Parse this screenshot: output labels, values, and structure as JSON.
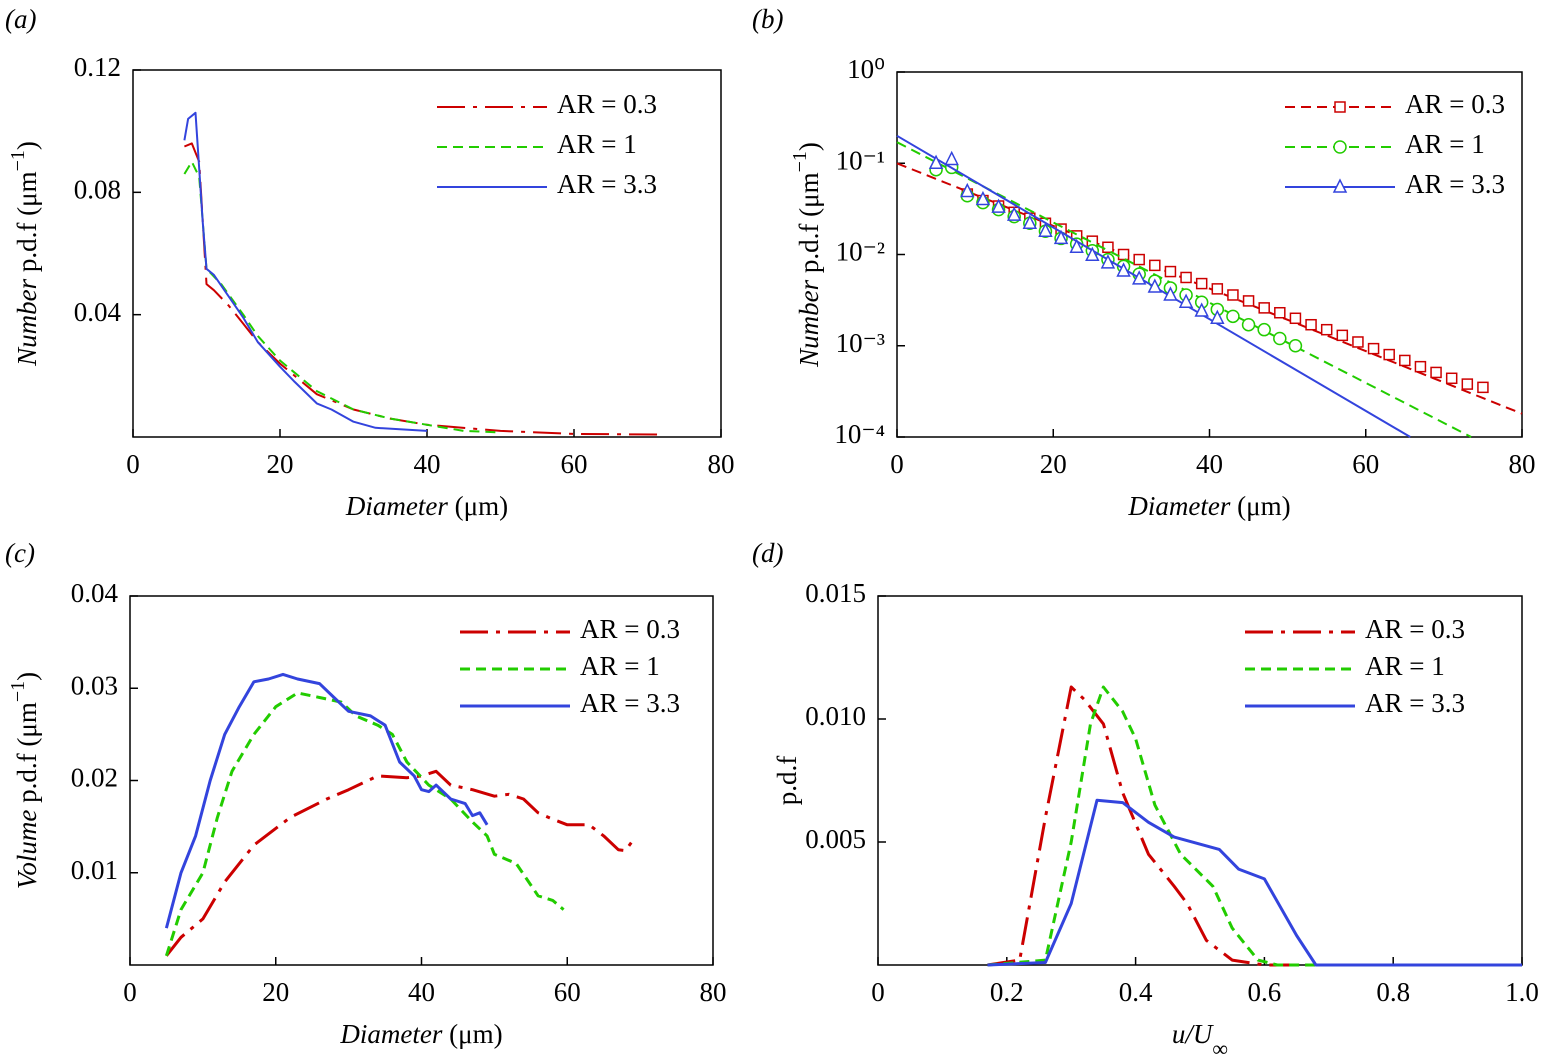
{
  "chart_data": [
    {
      "type": "line",
      "label": "(a)",
      "xlabel": [
        "Diameter",
        " (μm)"
      ],
      "ylabel": [
        "Number",
        " p.d.f (μm",
        "−1",
        ")"
      ],
      "xlim": [
        0,
        80
      ],
      "xticks": [
        0,
        20,
        40,
        60,
        80
      ],
      "ylim": [
        0,
        0.12
      ],
      "yticks": [
        0.04,
        0.08,
        0.12
      ],
      "legend": "upper right",
      "series": [
        {
          "name": "AR = 0.3",
          "color": "#cc0000",
          "dash": "dashdot",
          "x": [
            7,
            8,
            9,
            10,
            11,
            13,
            15,
            17,
            20,
            25,
            30,
            35,
            40,
            50,
            60,
            72
          ],
          "values": [
            0.095,
            0.096,
            0.09,
            0.05,
            0.048,
            0.043,
            0.037,
            0.031,
            0.024,
            0.014,
            0.009,
            0.006,
            0.004,
            0.002,
            0.001,
            0.0008
          ]
        },
        {
          "name": "AR = 1",
          "color": "#22cc00",
          "dash": "dashed",
          "x": [
            7,
            8,
            9,
            10,
            12,
            15,
            17,
            20,
            25,
            30,
            35,
            40,
            45,
            50
          ],
          "values": [
            0.086,
            0.09,
            0.085,
            0.055,
            0.05,
            0.04,
            0.033,
            0.025,
            0.015,
            0.009,
            0.006,
            0.004,
            0.002,
            0.0015
          ]
        },
        {
          "name": "AR = 3.3",
          "color": "#3344dd",
          "dash": "solid",
          "x": [
            7,
            7.5,
            8.5,
            9.5,
            10,
            11,
            13,
            15,
            17,
            20,
            22,
            25,
            27,
            30,
            33,
            40
          ],
          "values": [
            0.097,
            0.104,
            0.106,
            0.07,
            0.055,
            0.053,
            0.046,
            0.039,
            0.031,
            0.023,
            0.018,
            0.011,
            0.009,
            0.005,
            0.003,
            0.002
          ]
        }
      ]
    },
    {
      "type": "scatter",
      "label": "(b)",
      "xlabel": [
        "Diameter",
        " (μm)"
      ],
      "ylabel": [
        "Number",
        " p.d.f (μm",
        "−1",
        ")"
      ],
      "xlim": [
        0,
        80
      ],
      "xticks": [
        0,
        20,
        40,
        60,
        80
      ],
      "ylim": [
        0.0001,
        1
      ],
      "ylog": true,
      "legend": "upper right",
      "yticks": [
        {
          "value": 0.0001,
          "label": "10⁻⁴"
        },
        {
          "value": 0.001,
          "label": "10⁻³"
        },
        {
          "value": 0.01,
          "label": "10⁻²"
        },
        {
          "value": 0.1,
          "label": "10⁻¹"
        },
        {
          "value": 1,
          "label": "10⁰"
        }
      ],
      "series": [
        {
          "name": "AR = 0.3",
          "color": "#cc0000",
          "dash": "dashed",
          "marker": "square",
          "x": [
            9,
            11,
            13,
            15,
            17,
            19,
            21,
            23,
            25,
            27,
            29,
            31,
            33,
            35,
            37,
            39,
            41,
            43,
            45,
            47,
            49,
            51,
            53,
            55,
            57,
            59,
            61,
            63,
            65,
            67,
            69,
            71,
            73,
            75
          ],
          "values": [
            0.046,
            0.039,
            0.034,
            0.029,
            0.025,
            0.022,
            0.019,
            0.016,
            0.014,
            0.012,
            0.01,
            0.0088,
            0.0076,
            0.0065,
            0.0056,
            0.0048,
            0.0042,
            0.0036,
            0.0031,
            0.0026,
            0.0023,
            0.002,
            0.0017,
            0.0015,
            0.0013,
            0.0011,
            0.00093,
            0.0008,
            0.00069,
            0.00059,
            0.00051,
            0.00044,
            0.00038,
            0.00035
          ],
          "fit_x": [
            0,
            80
          ],
          "fit_values": [
            0.1,
            0.00018
          ]
        },
        {
          "name": "AR = 1",
          "color": "#22cc00",
          "dash": "dashed",
          "marker": "circle",
          "x": [
            5,
            7,
            9,
            11,
            13,
            15,
            17,
            19,
            21,
            23,
            25,
            27,
            29,
            31,
            33,
            35,
            37,
            39,
            41,
            43,
            45,
            47,
            49,
            51
          ],
          "values": [
            0.085,
            0.09,
            0.044,
            0.037,
            0.031,
            0.026,
            0.022,
            0.018,
            0.015,
            0.013,
            0.011,
            0.0088,
            0.0074,
            0.0061,
            0.0051,
            0.0043,
            0.0036,
            0.003,
            0.0025,
            0.0021,
            0.0017,
            0.0015,
            0.0012,
            0.001
          ],
          "fit_x": [
            0,
            73.5
          ],
          "fit_values": [
            0.17,
            0.0001
          ]
        },
        {
          "name": "AR = 3.3",
          "color": "#3344dd",
          "dash": "solid",
          "marker": "triangle",
          "x": [
            5,
            7,
            9,
            11,
            13,
            15,
            17,
            19,
            21,
            23,
            25,
            27,
            29,
            31,
            33,
            35,
            37,
            39,
            41
          ],
          "values": [
            0.1,
            0.11,
            0.049,
            0.04,
            0.033,
            0.027,
            0.022,
            0.018,
            0.015,
            0.012,
            0.0098,
            0.0081,
            0.0066,
            0.0054,
            0.0044,
            0.0036,
            0.003,
            0.0024,
            0.002
          ],
          "fit_x": [
            0,
            65.7
          ],
          "fit_values": [
            0.2,
            0.0001
          ]
        }
      ]
    },
    {
      "type": "line",
      "label": "(c)",
      "xlabel": [
        "Diameter",
        " (μm)"
      ],
      "ylabel": [
        "Volume",
        " p.d.f (μm",
        "−1",
        ")"
      ],
      "xlim": [
        0,
        80
      ],
      "xticks": [
        0,
        20,
        40,
        60,
        80
      ],
      "ylim": [
        0,
        0.04
      ],
      "yticks": [
        0.01,
        0.02,
        0.03,
        0.04
      ],
      "legend": "upper right",
      "series": [
        {
          "name": "AR = 0.3",
          "color": "#cc0000",
          "dash": "dashdot",
          "x": [
            5,
            7,
            10,
            13,
            17,
            22,
            27,
            30,
            34,
            38,
            40,
            42,
            44,
            47,
            50,
            52,
            54,
            56,
            58,
            60,
            63,
            65,
            67,
            68,
            69
          ],
          "values": [
            0.001,
            0.003,
            0.005,
            0.009,
            0.013,
            0.016,
            0.018,
            0.019,
            0.0205,
            0.0203,
            0.0205,
            0.021,
            0.0195,
            0.019,
            0.0183,
            0.0185,
            0.018,
            0.0165,
            0.0158,
            0.0152,
            0.0152,
            0.014,
            0.0125,
            0.0124,
            0.0135
          ]
        },
        {
          "name": "AR = 1",
          "color": "#22cc00",
          "dash": "dashed",
          "x": [
            5,
            7,
            10,
            12,
            14,
            17,
            20,
            23,
            26,
            29,
            31,
            34,
            36,
            38,
            41,
            44,
            47,
            49,
            50,
            53,
            56,
            58,
            59.5
          ],
          "values": [
            0.001,
            0.006,
            0.01,
            0.016,
            0.021,
            0.025,
            0.028,
            0.0295,
            0.029,
            0.0285,
            0.027,
            0.026,
            0.025,
            0.022,
            0.0195,
            0.018,
            0.0155,
            0.014,
            0.012,
            0.011,
            0.0075,
            0.007,
            0.006
          ]
        },
        {
          "name": "AR = 3.3",
          "color": "#3344dd",
          "dash": "solid",
          "x": [
            5,
            7,
            9,
            11,
            13,
            15,
            17,
            19,
            21,
            23,
            26,
            28,
            30,
            33,
            35,
            37,
            39,
            40,
            41,
            42,
            44,
            46,
            47,
            48,
            49
          ],
          "values": [
            0.004,
            0.01,
            0.014,
            0.02,
            0.025,
            0.028,
            0.0307,
            0.031,
            0.0315,
            0.031,
            0.0305,
            0.029,
            0.0275,
            0.027,
            0.026,
            0.022,
            0.0205,
            0.019,
            0.0188,
            0.0195,
            0.018,
            0.0175,
            0.0162,
            0.0165,
            0.0152
          ]
        }
      ]
    },
    {
      "type": "line",
      "label": "(d)",
      "xlabel": [
        "u/U",
        "∞"
      ],
      "ylabel": [
        "p.d.f"
      ],
      "xlim": [
        0,
        1
      ],
      "xticks": [
        0,
        0.2,
        0.4,
        0.6,
        0.8,
        {
          "value": 1,
          "label": "1.0"
        }
      ],
      "ylim": [
        0,
        0.015
      ],
      "yticks": [
        0.005,
        {
          "value": 0.01,
          "label": "0.010"
        },
        0.015
      ],
      "legend": "upper right",
      "series": [
        {
          "name": "AR = 0.3",
          "color": "#cc0000",
          "dash": "dashdot",
          "x": [
            0.17,
            0.22,
            0.26,
            0.3,
            0.32,
            0.35,
            0.38,
            0.42,
            0.46,
            0.48,
            0.51,
            0.55,
            0.6,
            1
          ],
          "values": [
            0,
            0.0002,
            0.006,
            0.0113,
            0.0108,
            0.0098,
            0.007,
            0.0045,
            0.0032,
            0.0025,
            0.001,
            0.0002,
            0,
            0
          ]
        },
        {
          "name": "AR = 1",
          "color": "#22cc00",
          "dash": "dashed",
          "x": [
            0.17,
            0.26,
            0.3,
            0.33,
            0.35,
            0.38,
            0.4,
            0.43,
            0.47,
            0.52,
            0.55,
            0.59,
            0.62,
            1
          ],
          "values": [
            0,
            0.0002,
            0.005,
            0.0098,
            0.0113,
            0.0103,
            0.0092,
            0.0065,
            0.0045,
            0.0032,
            0.0015,
            0.0002,
            0,
            0
          ]
        },
        {
          "name": "AR = 3.3",
          "color": "#3344dd",
          "dash": "solid",
          "x": [
            0.17,
            0.26,
            0.3,
            0.34,
            0.38,
            0.42,
            0.46,
            0.53,
            0.56,
            0.6,
            0.65,
            0.68,
            1
          ],
          "values": [
            0,
            0.0001,
            0.0025,
            0.0067,
            0.0066,
            0.0058,
            0.0052,
            0.0047,
            0.0039,
            0.0035,
            0.0012,
            0,
            0
          ]
        }
      ]
    }
  ]
}
